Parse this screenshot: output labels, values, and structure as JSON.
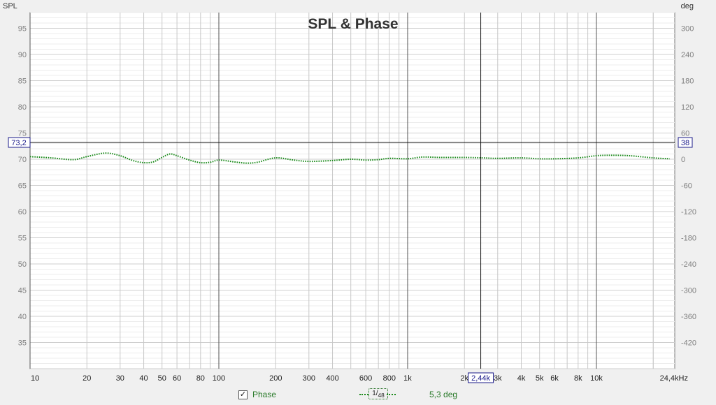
{
  "chart_data": {
    "type": "line",
    "title": "SPL & Phase",
    "left_axis_label": "SPL",
    "right_axis_label": "deg",
    "ylim_left": [
      30,
      98
    ],
    "y_ticks_left": [
      "95",
      "90",
      "85",
      "80",
      "75",
      "70",
      "65",
      "60",
      "55",
      "50",
      "45",
      "40",
      "35"
    ],
    "ylim_right": [
      -480,
      336
    ],
    "y_ticks_right": [
      "300",
      "240",
      "180",
      "120",
      "60",
      "0",
      "-60",
      "-120",
      "-180",
      "-240",
      "-300",
      "-360",
      "-420"
    ],
    "xlim": [
      10,
      26000
    ],
    "x_scale": "log",
    "x_ticks": [
      "10",
      "20",
      "30",
      "40",
      "50",
      "60",
      "80",
      "100",
      "200",
      "300",
      "400",
      "600",
      "800",
      "1k",
      "2k",
      "3k",
      "4k",
      "5k",
      "6k",
      "8k",
      "10k",
      "24,4kHz"
    ],
    "grid": true,
    "cursor": {
      "spl_label": "73,2",
      "deg_label": "38",
      "freq_label": "2,44k"
    },
    "series": [
      {
        "name": "Phase",
        "axis": "right",
        "color": "#1a8a1a",
        "style": "dotted",
        "x": [
          10,
          13,
          17,
          20,
          25,
          30,
          35,
          40,
          45,
          50,
          55,
          60,
          70,
          80,
          90,
          100,
          120,
          140,
          160,
          200,
          250,
          300,
          400,
          500,
          600,
          700,
          800,
          1000,
          1200,
          1500,
          2000,
          2500,
          3000,
          4000,
          5000,
          6000,
          8000,
          10000,
          12000,
          15000,
          20000,
          24400
        ],
        "y": [
          6,
          3,
          -1,
          6,
          14,
          8,
          -3,
          -8,
          -6,
          4,
          12,
          8,
          -2,
          -8,
          -7,
          -2,
          -6,
          -9,
          -7,
          3,
          -2,
          -5,
          -3,
          0,
          -2,
          -1,
          2,
          1,
          5,
          4,
          4,
          3,
          2,
          3,
          1,
          1,
          3,
          8,
          9,
          8,
          3,
          1
        ]
      }
    ]
  },
  "legend": {
    "checkbox_mark": "✓",
    "series_name": "Phase",
    "smoothing_num": "1",
    "smoothing_den": "48",
    "cursor_value": "5,3 deg"
  }
}
